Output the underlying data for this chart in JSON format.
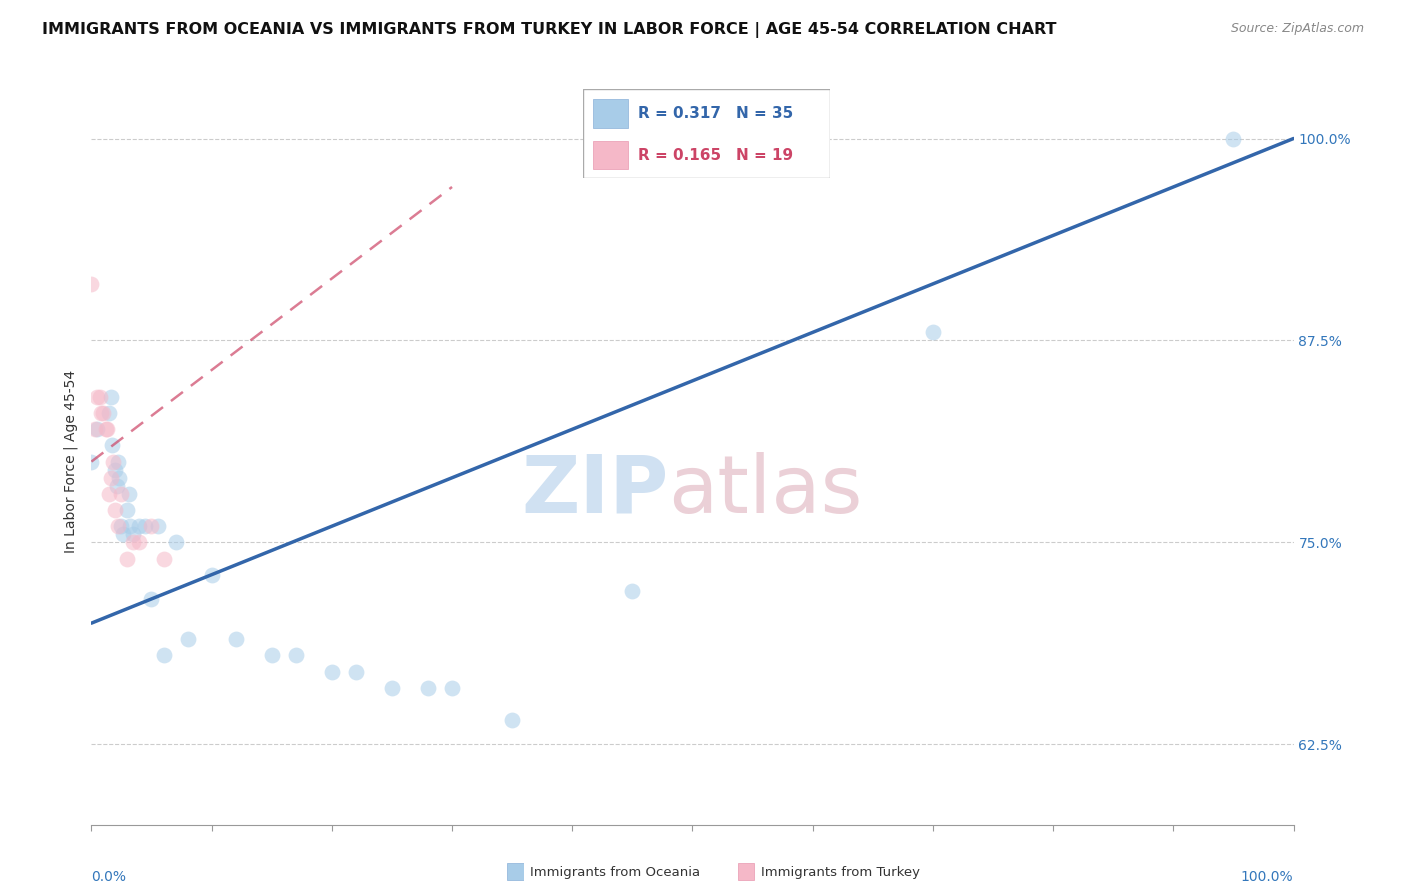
{
  "title": "IMMIGRANTS FROM OCEANIA VS IMMIGRANTS FROM TURKEY IN LABOR FORCE | AGE 45-54 CORRELATION CHART",
  "source": "Source: ZipAtlas.com",
  "ylabel": "In Labor Force | Age 45-54",
  "legend_oceania": "Immigrants from Oceania",
  "legend_turkey": "Immigrants from Turkey",
  "R_oceania": 0.317,
  "N_oceania": 35,
  "R_turkey": 0.165,
  "N_turkey": 19,
  "oceania_x": [
    0.0,
    0.5,
    1.5,
    1.6,
    1.7,
    2.0,
    2.1,
    2.2,
    2.3,
    2.5,
    2.6,
    3.0,
    3.1,
    3.2,
    3.5,
    4.0,
    4.5,
    5.0,
    5.5,
    6.0,
    7.0,
    8.0,
    10.0,
    12.0,
    15.0,
    17.0,
    20.0,
    22.0,
    25.0,
    28.0,
    30.0,
    35.0,
    45.0,
    70.0,
    95.0
  ],
  "oceania_y": [
    0.8,
    0.82,
    0.83,
    0.84,
    0.81,
    0.795,
    0.785,
    0.8,
    0.79,
    0.76,
    0.755,
    0.77,
    0.78,
    0.76,
    0.755,
    0.76,
    0.76,
    0.715,
    0.76,
    0.68,
    0.75,
    0.69,
    0.73,
    0.69,
    0.68,
    0.68,
    0.67,
    0.67,
    0.66,
    0.66,
    0.66,
    0.64,
    0.72,
    0.88,
    1.0
  ],
  "turkey_x": [
    0.0,
    0.3,
    0.5,
    0.7,
    0.8,
    1.0,
    1.2,
    1.3,
    1.5,
    1.6,
    1.8,
    2.0,
    2.2,
    2.5,
    3.0,
    3.5,
    4.0,
    5.0,
    6.0
  ],
  "turkey_y": [
    0.91,
    0.82,
    0.84,
    0.84,
    0.83,
    0.83,
    0.82,
    0.82,
    0.78,
    0.79,
    0.8,
    0.77,
    0.76,
    0.78,
    0.74,
    0.75,
    0.75,
    0.76,
    0.74
  ],
  "oceania_color": "#a8cce8",
  "turkey_color": "#f5b8c8",
  "oceania_line_color": "#3366aa",
  "turkey_line_color": "#cc4466",
  "xlim": [
    0.0,
    100.0
  ],
  "ylim": [
    0.575,
    1.025
  ],
  "yticks": [
    0.625,
    0.75,
    0.875,
    1.0
  ],
  "ytick_labels": [
    "62.5%",
    "75.0%",
    "87.5%",
    "100.0%"
  ],
  "grid_color": "#cccccc",
  "title_fontsize": 11.5,
  "axis_label_fontsize": 10,
  "tick_fontsize": 10,
  "dot_size": 130,
  "dot_alpha": 0.55,
  "oceania_line_x0": 0.0,
  "oceania_line_y0": 0.7,
  "oceania_line_x1": 100.0,
  "oceania_line_y1": 1.0,
  "turkey_line_x0": 0.0,
  "turkey_line_y0": 0.8,
  "turkey_line_x1": 30.0,
  "turkey_line_y1": 0.97
}
